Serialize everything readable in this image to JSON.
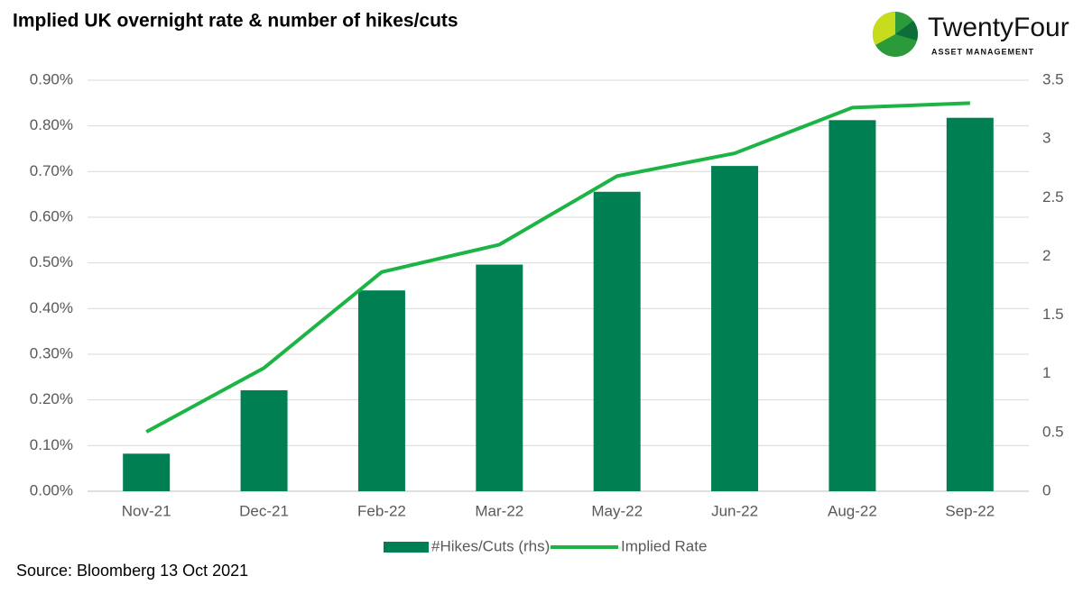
{
  "chart_data": {
    "type": "bar-line",
    "title": "Implied UK overnight rate & number of hikes/cuts",
    "categories": [
      "Nov-21",
      "Dec-21",
      "Feb-22",
      "Mar-22",
      "May-22",
      "Jun-22",
      "Aug-22",
      "Sep-22"
    ],
    "series": [
      {
        "name": "#Hikes/Cuts (rhs)",
        "type": "bar",
        "axis": "y2",
        "color": "#008052",
        "values": [
          0.32,
          0.86,
          1.71,
          1.93,
          2.55,
          2.77,
          3.16,
          3.18
        ]
      },
      {
        "name": "Implied Rate",
        "type": "line",
        "axis": "y",
        "color": "#1db446",
        "values": [
          0.13,
          0.27,
          0.48,
          0.54,
          0.69,
          0.74,
          0.84,
          0.85
        ]
      }
    ],
    "ylim": [
      0,
      0.9
    ],
    "yticks": [
      {
        "value": 0,
        "label": "0.00%"
      },
      {
        "value": 0.1,
        "label": "0.10%"
      },
      {
        "value": 0.2,
        "label": "0.20%"
      },
      {
        "value": 0.3,
        "label": "0.30%"
      },
      {
        "value": 0.4,
        "label": "0.40%"
      },
      {
        "value": 0.5,
        "label": "0.50%"
      },
      {
        "value": 0.6,
        "label": "0.60%"
      },
      {
        "value": 0.7,
        "label": "0.70%"
      },
      {
        "value": 0.8,
        "label": "0.80%"
      },
      {
        "value": 0.9,
        "label": "0.90%"
      }
    ],
    "y2lim": [
      0,
      3.5
    ],
    "y2ticks": [
      0,
      0.5,
      1,
      1.5,
      2,
      2.5,
      3,
      3.5
    ],
    "grid": true,
    "legend": "bottom",
    "source": "Source: Bloomberg 13 Oct 2021"
  },
  "logo": {
    "name": "TwentyFour",
    "tagline": "ASSET MANAGEMENT"
  }
}
